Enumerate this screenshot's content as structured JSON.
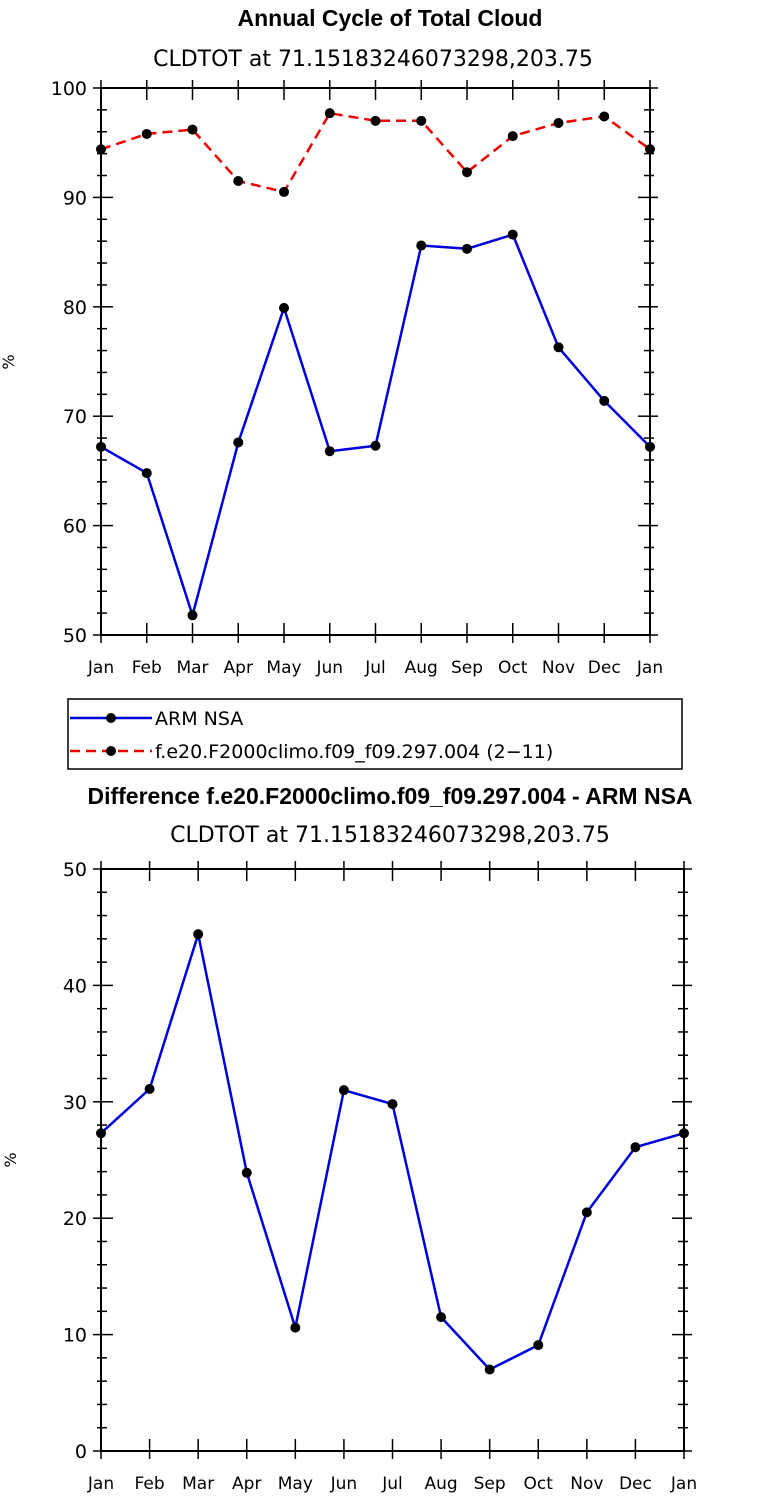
{
  "colors": {
    "arm": "#0000dd",
    "model": "#ee0000",
    "axis": "#000000",
    "marker": "#000000"
  },
  "chart_data": [
    {
      "type": "line",
      "title": "Annual Cycle of Total Cloud",
      "subtitle": "CLDTOT at 71.15183246073298,203.75",
      "xlabel": "",
      "ylabel": "%",
      "categories": [
        "Jan",
        "Feb",
        "Mar",
        "Apr",
        "May",
        "Jun",
        "Jul",
        "Aug",
        "Sep",
        "Oct",
        "Nov",
        "Dec",
        "Jan"
      ],
      "ylim": [
        50,
        100
      ],
      "yticks": [
        50,
        60,
        70,
        80,
        90,
        100
      ],
      "series": [
        {
          "name": "ARM NSA",
          "style": "solid",
          "color": "#0000dd",
          "values": [
            67.2,
            64.8,
            51.8,
            67.6,
            79.9,
            66.8,
            67.3,
            85.6,
            85.3,
            86.6,
            76.3,
            71.4,
            67.2
          ]
        },
        {
          "name": "f.e20.F2000climo.f09_f09.297.004 (2−11)",
          "style": "dashed",
          "color": "#ee0000",
          "values": [
            94.4,
            95.8,
            96.2,
            91.5,
            90.5,
            97.7,
            97.0,
            97.0,
            92.3,
            95.6,
            96.8,
            97.4,
            94.4
          ]
        }
      ],
      "legend": [
        {
          "label": "ARM NSA",
          "style": "solid",
          "color": "#0000dd"
        },
        {
          "label": "f.e20.F2000climo.f09_f09.297.004 (2−11)",
          "style": "dashed",
          "color": "#ee0000"
        }
      ]
    },
    {
      "type": "line",
      "title": "Difference f.e20.F2000climo.f09_f09.297.004 - ARM NSA",
      "subtitle": "CLDTOT at 71.15183246073298,203.75",
      "xlabel": "",
      "ylabel": "%",
      "categories": [
        "Jan",
        "Feb",
        "Mar",
        "Apr",
        "May",
        "Jun",
        "Jul",
        "Aug",
        "Sep",
        "Oct",
        "Nov",
        "Dec",
        "Jan"
      ],
      "ylim": [
        0,
        50
      ],
      "yticks": [
        0,
        10,
        20,
        30,
        40,
        50
      ],
      "series": [
        {
          "name": "Difference",
          "style": "solid",
          "color": "#0000dd",
          "values": [
            27.3,
            31.1,
            44.4,
            23.9,
            10.6,
            31.0,
            29.8,
            11.5,
            7.0,
            9.1,
            20.5,
            26.1,
            27.3
          ]
        }
      ]
    }
  ]
}
